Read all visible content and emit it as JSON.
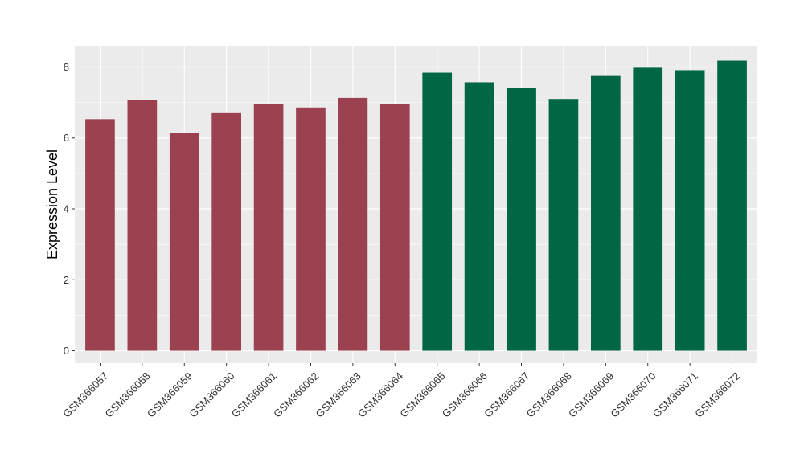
{
  "chart_data": {
    "type": "bar",
    "title": "",
    "xlabel": "",
    "ylabel": "Expression Level",
    "ylim": [
      -0.35,
      8.6
    ],
    "yticks": [
      0,
      2,
      4,
      6,
      8
    ],
    "grid": true,
    "legend": "none",
    "categories": [
      "GSM366057",
      "GSM366058",
      "GSM366059",
      "GSM366060",
      "GSM366061",
      "GSM366062",
      "GSM366063",
      "GSM366064",
      "GSM366065",
      "GSM366066",
      "GSM366067",
      "GSM366068",
      "GSM366069",
      "GSM366070",
      "GSM366071",
      "GSM366072"
    ],
    "values": [
      6.53,
      7.06,
      6.15,
      6.7,
      6.95,
      6.86,
      7.13,
      6.95,
      7.84,
      7.57,
      7.4,
      7.1,
      7.77,
      7.98,
      7.91,
      8.18
    ],
    "colors": [
      "#9b4150",
      "#9b4150",
      "#9b4150",
      "#9b4150",
      "#9b4150",
      "#9b4150",
      "#9b4150",
      "#9b4150",
      "#006644",
      "#006644",
      "#006644",
      "#006644",
      "#006644",
      "#006644",
      "#006644",
      "#006644"
    ],
    "panel_color": "#ebebeb",
    "grid_color": "#ffffff"
  }
}
